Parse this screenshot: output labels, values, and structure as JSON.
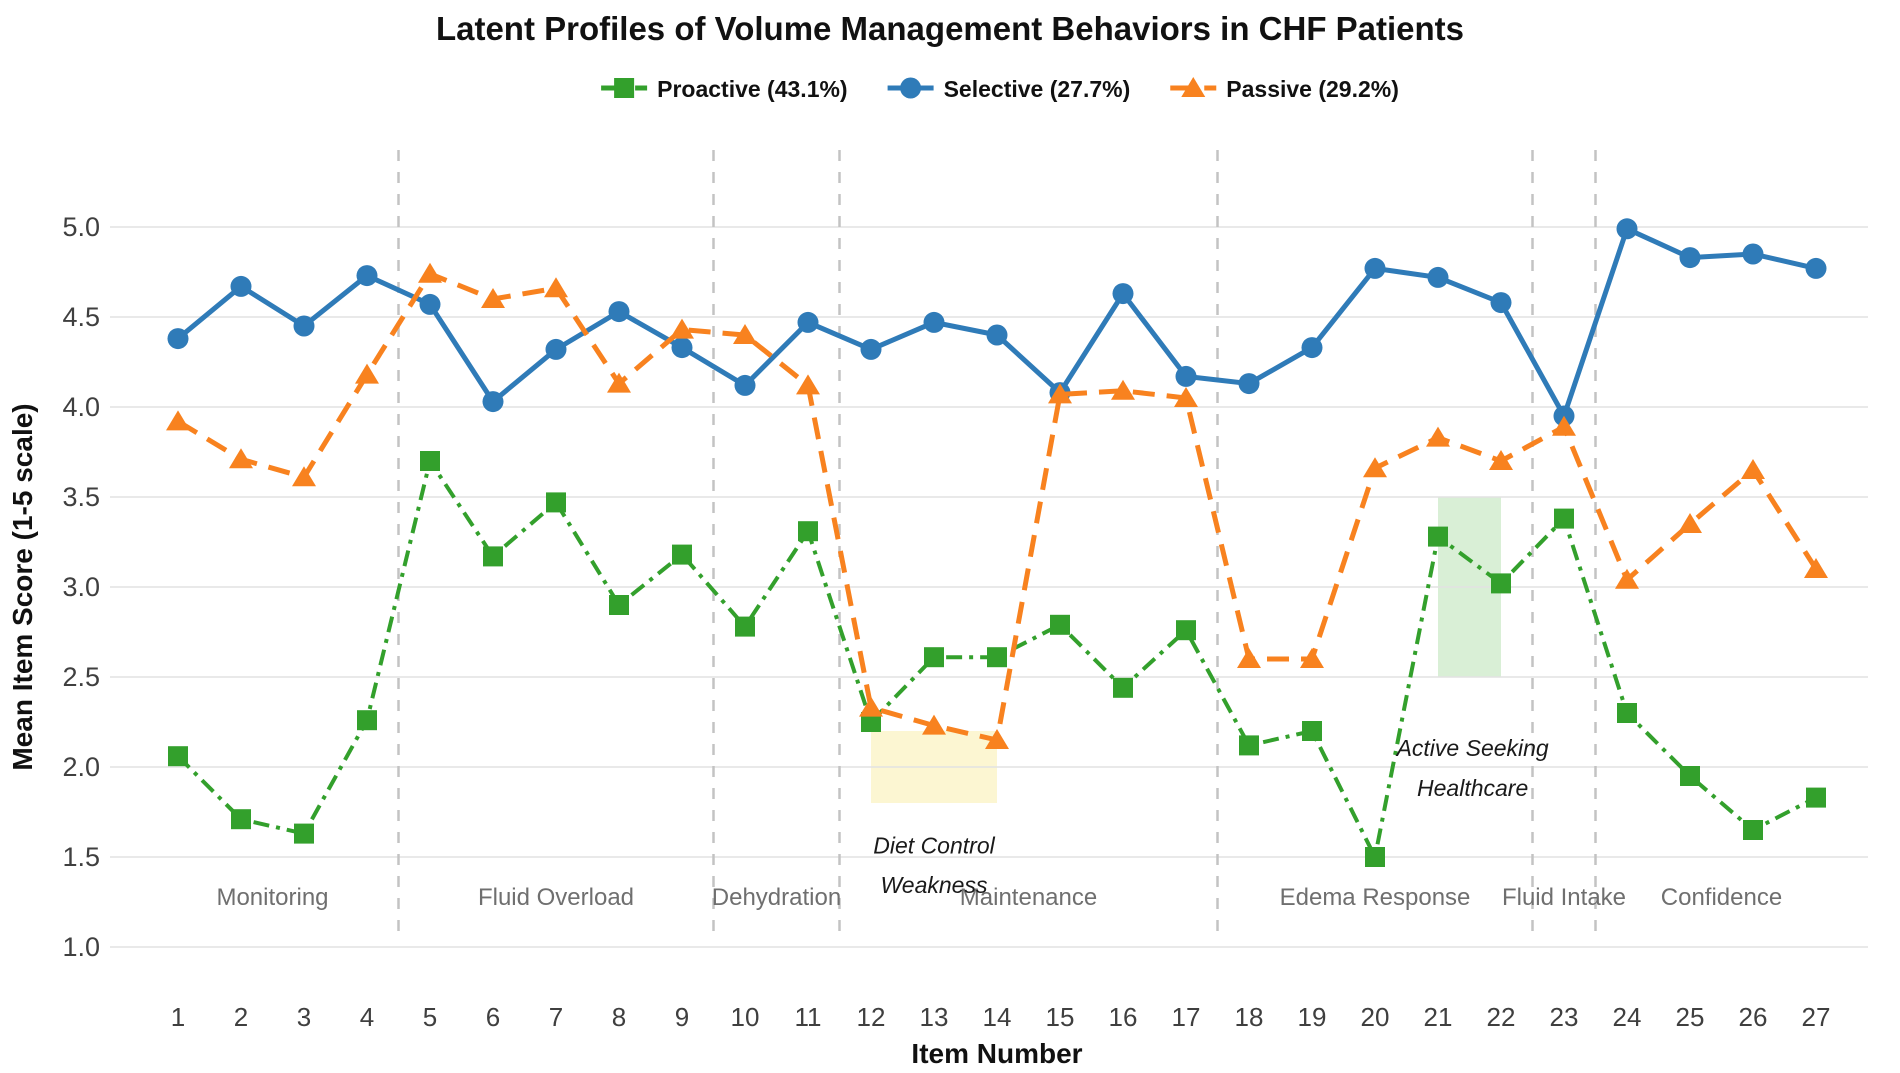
{
  "title": "Latent Profiles of Volume Management Behaviors in CHF Patients",
  "colors": {
    "grid": "#e2e2e2",
    "divider": "#c3c3c3",
    "section_label": "#6f6f6f",
    "tick_label": "#3f3f3f",
    "annotation": "#1a1a1a",
    "proactive": "#33a02c",
    "selective": "#2f7bb8",
    "passive": "#f8821f"
  },
  "y_axis": {
    "title": "Mean Item Score (1-5 scale)",
    "tick_labels": [
      "5.0",
      "4.5",
      "4.0",
      "3.5",
      "3.0",
      "2.5",
      "2.0",
      "1.5",
      "1.0"
    ],
    "tick_values": [
      5.0,
      4.5,
      4.0,
      3.5,
      3.0,
      2.5,
      2.0,
      1.5,
      1.0
    ]
  },
  "x_axis": {
    "title": "Item Number",
    "tick_labels": [
      "1",
      "2",
      "3",
      "4",
      "5",
      "6",
      "7",
      "8",
      "9",
      "10",
      "11",
      "12",
      "13",
      "14",
      "15",
      "16",
      "17",
      "18",
      "19",
      "20",
      "21",
      "22",
      "23",
      "24",
      "25",
      "26",
      "27"
    ]
  },
  "chart_data": {
    "type": "line",
    "title": "Latent Profiles of Volume Management Behaviors in CHF Patients",
    "xlabel": "Item Number",
    "ylabel": "Mean Item Score (1-5 scale)",
    "x": [
      1,
      2,
      3,
      4,
      5,
      6,
      7,
      8,
      9,
      10,
      11,
      12,
      13,
      14,
      15,
      16,
      17,
      18,
      19,
      20,
      21,
      22,
      23,
      24,
      25,
      26,
      27
    ],
    "ylim": [
      1.0,
      5.0
    ],
    "grid": true,
    "legend_position": "top-center",
    "series": [
      {
        "name": "Proactive (43.1%)",
        "color": "#33a02c",
        "marker": "square",
        "linestyle": "dashdot",
        "values": [
          2.06,
          1.71,
          1.63,
          2.26,
          3.7,
          3.17,
          3.47,
          2.9,
          3.18,
          2.78,
          3.31,
          2.25,
          2.61,
          2.61,
          2.79,
          2.44,
          2.76,
          2.12,
          2.2,
          1.5,
          3.28,
          3.02,
          3.38,
          2.3,
          1.95,
          1.65,
          1.83
        ]
      },
      {
        "name": "Selective (27.7%)",
        "color": "#2f7bb8",
        "marker": "circle",
        "linestyle": "solid",
        "values": [
          4.38,
          4.67,
          4.45,
          4.73,
          4.57,
          4.03,
          4.32,
          4.53,
          4.33,
          4.12,
          4.47,
          4.32,
          4.47,
          4.4,
          4.08,
          4.63,
          4.17,
          4.13,
          4.33,
          4.77,
          4.72,
          4.58,
          3.95,
          4.99,
          4.83,
          4.85,
          4.77
        ]
      },
      {
        "name": "Passive (29.2%)",
        "color": "#f8821f",
        "marker": "triangle",
        "linestyle": "dashed",
        "values": [
          3.92,
          3.71,
          3.61,
          4.18,
          4.74,
          4.6,
          4.66,
          4.13,
          4.43,
          4.4,
          4.12,
          2.33,
          2.23,
          2.15,
          4.07,
          4.09,
          4.05,
          2.6,
          2.6,
          3.66,
          3.83,
          3.7,
          3.89,
          3.04,
          3.35,
          3.65,
          3.1
        ]
      }
    ],
    "sections": [
      {
        "label": "Monitoring",
        "start": 1,
        "end": 4
      },
      {
        "label": "Fluid Overload",
        "start": 5,
        "end": 9
      },
      {
        "label": "Dehydration",
        "start": 10,
        "end": 11
      },
      {
        "label": "Maintenance",
        "start": 12,
        "end": 17
      },
      {
        "label": "Edema Response",
        "start": 18,
        "end": 22
      },
      {
        "label": "Fluid Intake",
        "start": 23,
        "end": 23
      },
      {
        "label": "Confidence",
        "start": 24,
        "end": 27
      }
    ],
    "dividers_x": [
      4.5,
      9.5,
      11.5,
      17.5,
      22.5,
      23.5
    ],
    "highlights": [
      {
        "x_start": 12,
        "x_end": 14,
        "y_bottom": 1.8,
        "y_top": 2.2,
        "color": "#fcf6d2"
      },
      {
        "x_start": 21,
        "x_end": 22,
        "y_bottom": 2.5,
        "y_top": 3.5,
        "color": "#d9efd6"
      }
    ],
    "annotations": [
      {
        "lines": [
          "Diet Control",
          "Weakness"
        ],
        "x": 13.0,
        "y": 1.52
      },
      {
        "lines": [
          "Active Seeking",
          "Healthcare"
        ],
        "x": 21.55,
        "y": 2.06
      }
    ]
  }
}
